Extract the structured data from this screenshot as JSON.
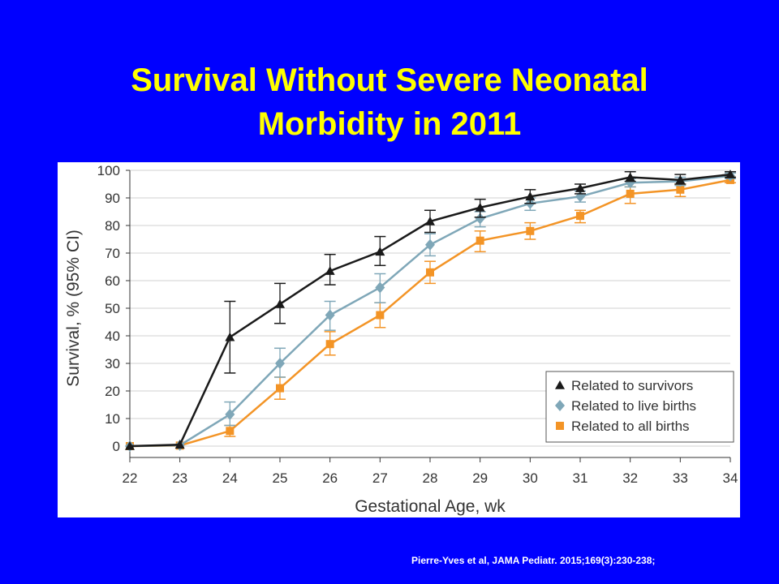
{
  "slide": {
    "title_line1": "Survival Without Severe Neonatal",
    "title_line2": "Morbidity in 2011",
    "citation": "Pierre-Yves  et al, JAMA Pediatr. 2015;169(3):230-238;"
  },
  "colors": {
    "background": "#0000ff",
    "title": "#ffff00",
    "survivors": "#1a1a1a",
    "live_births": "#7fa7b8",
    "all_births": "#f39426"
  },
  "chart_data": {
    "type": "line",
    "xlabel": "Gestational Age, wk",
    "ylabel": "Survival, % (95% CI)",
    "x": [
      22,
      23,
      24,
      25,
      26,
      27,
      28,
      29,
      30,
      31,
      32,
      33,
      34
    ],
    "xlim": [
      22,
      34
    ],
    "ylim": [
      0,
      100
    ],
    "yticks": [
      0,
      10,
      20,
      30,
      40,
      50,
      60,
      70,
      80,
      90,
      100
    ],
    "grid": true,
    "legend_position": "bottom-right",
    "series": [
      {
        "name": "Related to survivors",
        "marker": "triangle",
        "color": "#1a1a1a",
        "values": [
          0,
          0.5,
          39.5,
          51.5,
          63.5,
          70.5,
          81.5,
          86.5,
          90.5,
          93.5,
          97.5,
          96.5,
          98.5
        ],
        "ci_low": [
          null,
          null,
          26.5,
          44.5,
          58.5,
          65.5,
          77.5,
          83,
          88,
          91.5,
          96,
          95,
          97.5
        ],
        "ci_high": [
          null,
          null,
          52.5,
          59,
          69.5,
          76,
          85.5,
          89.5,
          93,
          95,
          99.5,
          98.5,
          99.5
        ]
      },
      {
        "name": "Related to live births",
        "marker": "diamond",
        "color": "#7fa7b8",
        "values": [
          0,
          0.3,
          11.5,
          30,
          47.5,
          57.5,
          73,
          82.5,
          88,
          90.5,
          95.5,
          96,
          98
        ],
        "ci_low": [
          null,
          null,
          7.5,
          25,
          42,
          52,
          69,
          79.5,
          85.5,
          88.5,
          94,
          94.5,
          97
        ],
        "ci_high": [
          null,
          null,
          16,
          35.5,
          52.5,
          62.5,
          77,
          85,
          90,
          92.5,
          97,
          97.5,
          99
        ]
      },
      {
        "name": "Related to all births",
        "marker": "square",
        "color": "#f39426",
        "values": [
          0,
          0.2,
          5.5,
          21,
          37,
          47.5,
          63,
          74.5,
          78,
          83.5,
          91.5,
          93,
          96.5
        ],
        "ci_low": [
          null,
          null,
          3.5,
          17,
          33,
          43,
          59,
          70.5,
          75,
          81,
          88,
          90.5,
          95.5
        ],
        "ci_high": [
          null,
          null,
          7.5,
          25,
          41.5,
          52,
          67,
          78,
          81,
          85.5,
          94,
          95,
          97.5
        ]
      }
    ]
  }
}
